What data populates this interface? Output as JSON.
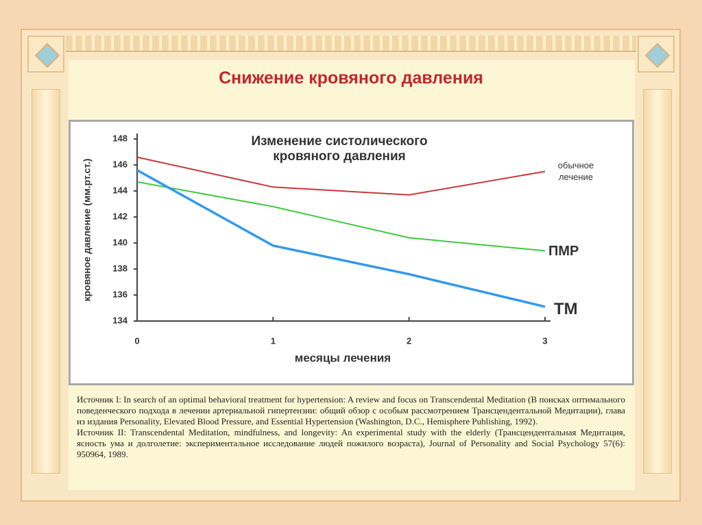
{
  "slide_title": "Снижение кровяного давления",
  "chart_data": {
    "type": "line",
    "title": "Изменение систолического кровяного давления",
    "x_label": "месяцы лечения",
    "y_label": "кровяное давление (мм.рт.ст.)",
    "x": [
      0,
      1,
      2,
      3
    ],
    "xlim": [
      0,
      3
    ],
    "xticks": [
      0,
      1,
      2,
      3
    ],
    "ylim": [
      134,
      148
    ],
    "yticks": [
      134,
      136,
      138,
      140,
      142,
      144,
      146,
      148
    ],
    "grid": false,
    "series": [
      {
        "name": "обычное лечение",
        "color": "#c8373a",
        "values": [
          146.6,
          144.3,
          143.7,
          145.5
        ]
      },
      {
        "name": "ПМР",
        "color": "#3cc83c",
        "values": [
          144.7,
          142.8,
          140.4,
          139.4
        ]
      },
      {
        "name": "ТМ",
        "color": "#3399ee",
        "values": [
          145.6,
          139.8,
          137.6,
          135.1
        ]
      }
    ]
  },
  "sources": [
    "Источник I: In search of an optimal behavioral treatment for hypertension: A review and focus on Transcendental Meditation (В поисках оптимального поведенческого подхода в лечении артериальной гипертензии: общий обзор с особым рассмотрением Трансцендентальной Медитации), глава из издания Personality, Elevated Blood Pressure, and Essential Hypertension (Washington, D.C., Hemisphere Publishing, 1992).",
    "Источник II: Transcendental Meditation, mindfulness, and longevity: An experimental study with the elderly (Трансцендентальная Медитация, ясность ума и долголетие: экспериментальное исследование людей пожилого возраста), Journal of Personality and Social Psychology 57(6): 950964, 1989."
  ]
}
